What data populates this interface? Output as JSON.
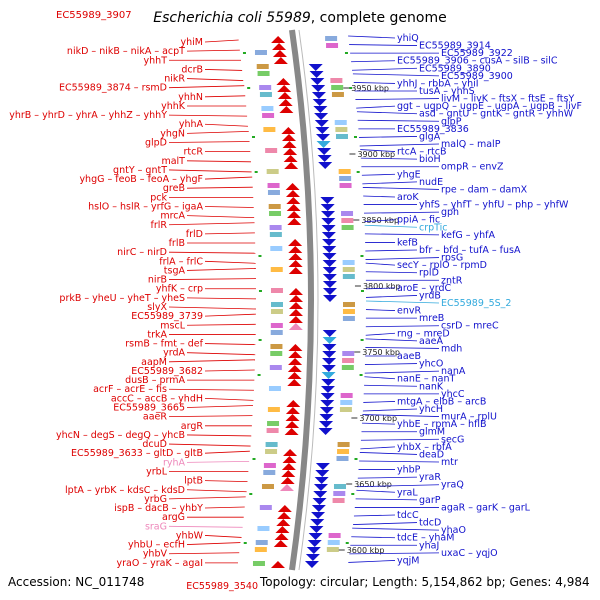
{
  "header": {
    "organism": "Escherichia coli 55989",
    "suffix": ", complete genome",
    "top_left_label": "EC55989_3907"
  },
  "footer": {
    "accession": "Accession: NC_011748",
    "summary": "Topology: circular; Length: 5,154,862 bp; Genes: 4,984",
    "bottom_left_label": "EC55989_3540"
  },
  "colors": {
    "minus_strand": "#dd0000",
    "plus_strand": "#1111cc",
    "rna_minus": "#ee88bb",
    "rna_plus": "#33aadd",
    "backbone": "#888888"
  },
  "kbp_ticks": [
    "3950 kbp",
    "3900 kbp",
    "3850 kbp",
    "3800 kbp",
    "3750 kbp",
    "3700 kbp",
    "3650 kbp",
    "3600 kbp"
  ],
  "left_labels": [
    {
      "text": "yhiM"
    },
    {
      "text": "nikD – nikB – nikA – acpT"
    },
    {
      "text": "yhhT"
    },
    {
      "text": "dcrB"
    },
    {
      "text": "nikR"
    },
    {
      "text": "EC55989_3874 – rsmD"
    },
    {
      "text": "yhhN"
    },
    {
      "text": "yhhK"
    },
    {
      "text": "yhrB – yhrD – yhrA – yhhZ – yhhY"
    },
    {
      "text": "yhhA"
    },
    {
      "text": "yhgN"
    },
    {
      "text": "glpD"
    },
    {
      "text": "rtcR"
    },
    {
      "text": "malT"
    },
    {
      "text": "gntY – gntT"
    },
    {
      "text": "yhgG – feoB – feoA – yhgF"
    },
    {
      "text": "greB"
    },
    {
      "text": "pck"
    },
    {
      "text": "hslO – hslR – yrfG – igaA"
    },
    {
      "text": "mrcA"
    },
    {
      "text": "frlR"
    },
    {
      "text": "frlD"
    },
    {
      "text": "frlB"
    },
    {
      "text": "nirC – nirD"
    },
    {
      "text": "frlA – frlC"
    },
    {
      "text": "tsgA"
    },
    {
      "text": "nirB"
    },
    {
      "text": "yhfK – crp"
    },
    {
      "text": "prkB – yheU – yheT – yheS"
    },
    {
      "text": "slyX"
    },
    {
      "text": "EC55989_3739"
    },
    {
      "text": "mscL"
    },
    {
      "text": "trkA"
    },
    {
      "text": "rsmB – fmt – def"
    },
    {
      "text": "yrdA"
    },
    {
      "text": "aapM"
    },
    {
      "text": "EC55989_3682"
    },
    {
      "text": "dusB – prmA"
    },
    {
      "text": "acrF – acrE – fis"
    },
    {
      "text": "accC – accB – yhdH"
    },
    {
      "text": "EC55989_3665"
    },
    {
      "text": "aaeR"
    },
    {
      "text": "argR"
    },
    {
      "text": "yhcN – degS – degQ – yhcB"
    },
    {
      "text": "dcuD"
    },
    {
      "text": "EC55989_3633 – gltD – gltB"
    },
    {
      "text": "ryhA"
    },
    {
      "text": "yrbL"
    },
    {
      "text": "lptB"
    },
    {
      "text": "lptA – yrbK – kdsC – kdsD"
    },
    {
      "text": "yrbG"
    },
    {
      "text": "ispB – dacB – yhbY"
    },
    {
      "text": "argG"
    },
    {
      "text": "sraG"
    },
    {
      "text": "yhbW"
    },
    {
      "text": "yhbU – ecfH"
    },
    {
      "text": "yhbV"
    },
    {
      "text": "yraO – yraK – agaI"
    }
  ],
  "right_labels": [
    {
      "text": "yhiQ"
    },
    {
      "text": "EC55989_3914"
    },
    {
      "text": "EC55989_3922"
    },
    {
      "text": "EC55989_3906 – cusA – silB – silC"
    },
    {
      "text": "EC55989_3890"
    },
    {
      "text": "EC55989_3900"
    },
    {
      "text": "yhhJ – rbbA – yhiI"
    },
    {
      "text": "tusA – yhhS"
    },
    {
      "text": "livM – livK – ftsX – ftsE – ftsY"
    },
    {
      "text": "ggt – ugpQ – ugpE – ugpA – ugpB – livF"
    },
    {
      "text": "asd – gntU – gntK – gntR – yhhW"
    },
    {
      "text": "glpP"
    },
    {
      "text": "EC55989_3836"
    },
    {
      "text": "glgA"
    },
    {
      "text": "malQ – malP"
    },
    {
      "text": "rtcA – rtcB"
    },
    {
      "text": "bioH"
    },
    {
      "text": "ompR – envZ"
    },
    {
      "text": "yhgE"
    },
    {
      "text": "nudE"
    },
    {
      "text": "rpe – dam – damX"
    },
    {
      "text": "aroK"
    },
    {
      "text": "yhfS – yhfT – yhfU – php – yhfW"
    },
    {
      "text": "gph"
    },
    {
      "text": "ppiA – fic"
    },
    {
      "text": "crpTic"
    },
    {
      "text": "kefG – yhfA"
    },
    {
      "text": "kefB"
    },
    {
      "text": "bfr – bfd – tufA – fusA"
    },
    {
      "text": "rpsG"
    },
    {
      "text": "secY – rplO – rpmD"
    },
    {
      "text": "rplD"
    },
    {
      "text": "zntR"
    },
    {
      "text": "aroE – yrdC"
    },
    {
      "text": "yrdB"
    },
    {
      "text": "EC55989_5S_2"
    },
    {
      "text": "envR"
    },
    {
      "text": "mreB"
    },
    {
      "text": "csrD – mreC"
    },
    {
      "text": "rng – mreD"
    },
    {
      "text": "aaeA"
    },
    {
      "text": "mdh"
    },
    {
      "text": "aaeB"
    },
    {
      "text": "yhcO"
    },
    {
      "text": "nanA"
    },
    {
      "text": "nanE – nanT"
    },
    {
      "text": "nanK"
    },
    {
      "text": "yhcC"
    },
    {
      "text": "mtgA – elbB – arcB"
    },
    {
      "text": "yhcH"
    },
    {
      "text": "murA – rplU"
    },
    {
      "text": "yhbE – rpmA – hflB"
    },
    {
      "text": "glmM"
    },
    {
      "text": "secG"
    },
    {
      "text": "yhbX – rbfA"
    },
    {
      "text": "deaD"
    },
    {
      "text": "mtr"
    },
    {
      "text": "yhbP"
    },
    {
      "text": "yraR"
    },
    {
      "text": "yraQ"
    },
    {
      "text": "yraL"
    },
    {
      "text": "garP"
    },
    {
      "text": "agaR – garK – garL"
    },
    {
      "text": "tdcC"
    },
    {
      "text": "tdcD"
    },
    {
      "text": "yhaO"
    },
    {
      "text": "tdcE – yhaM"
    },
    {
      "text": "yhaJ"
    },
    {
      "text": "uxaC – yqjO"
    },
    {
      "text": "yqjM"
    }
  ]
}
